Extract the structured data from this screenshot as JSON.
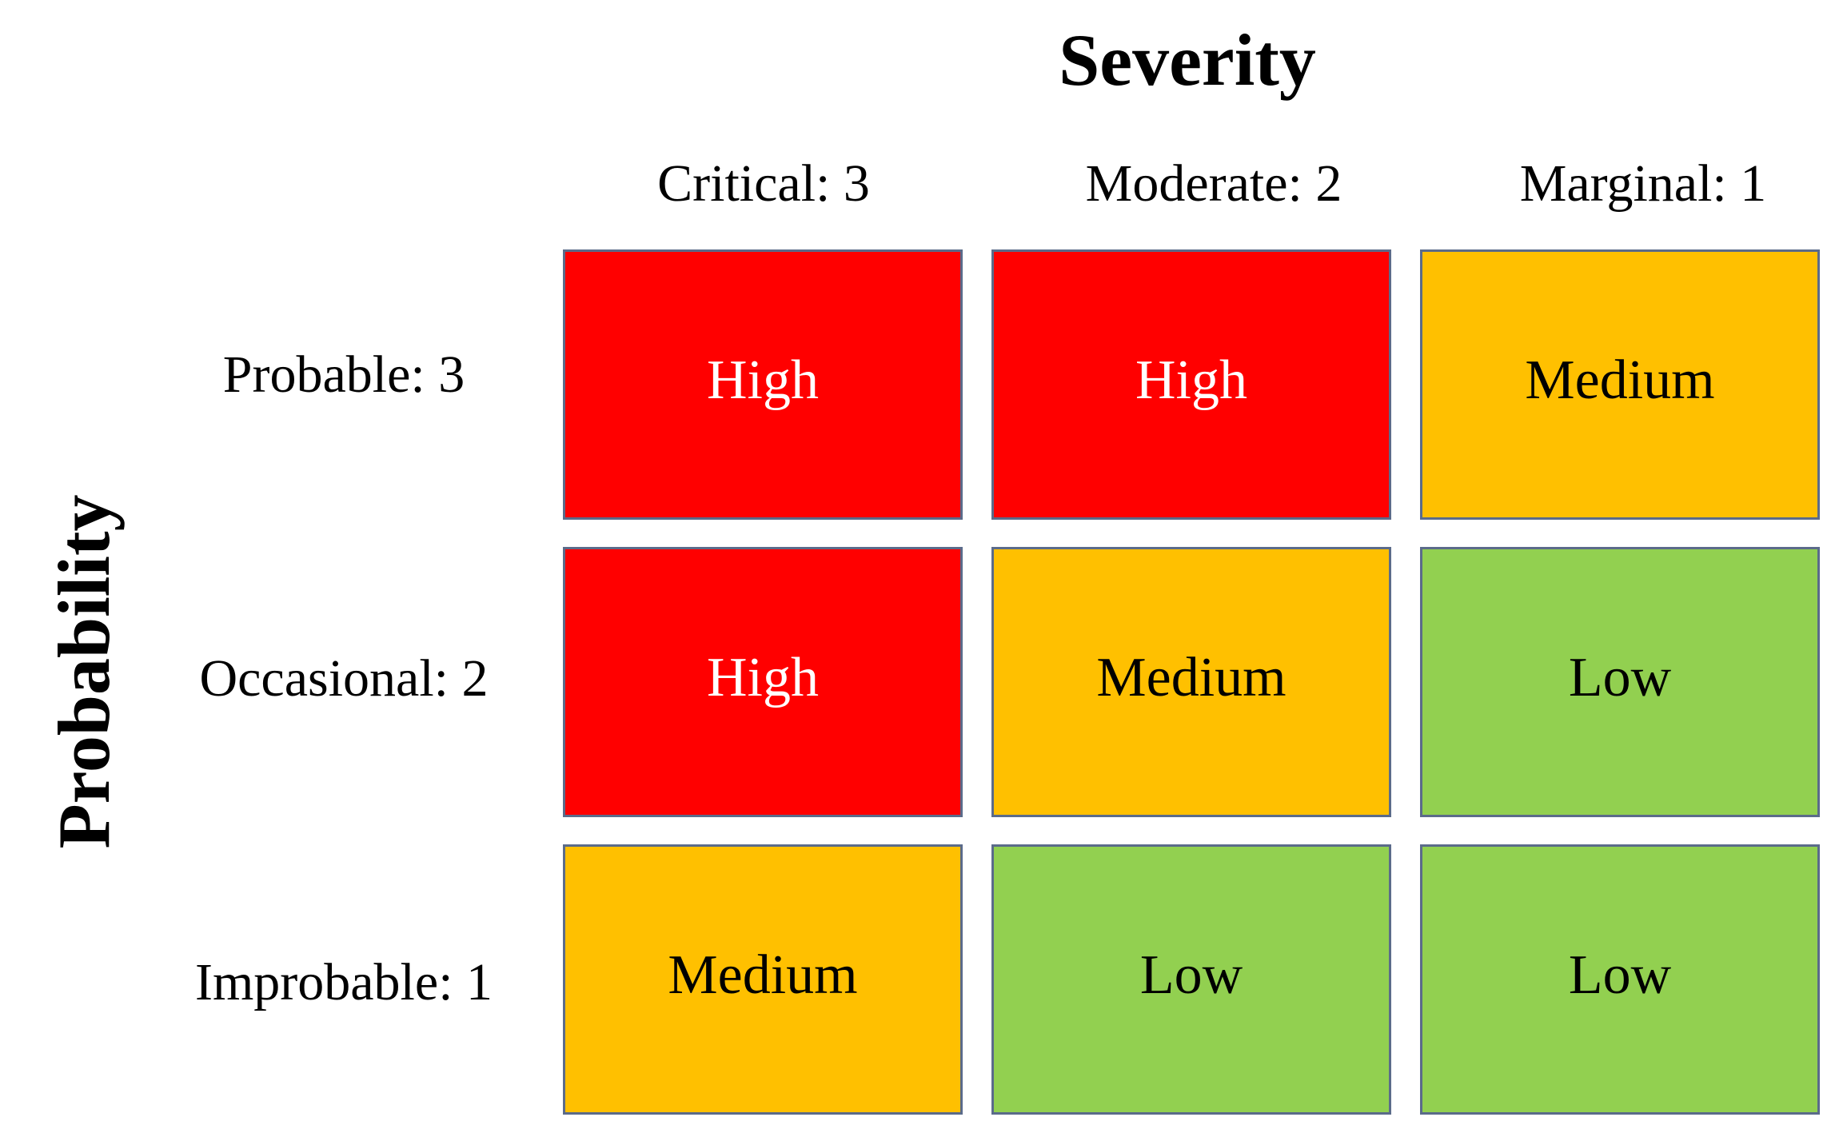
{
  "diagram": {
    "title_x": "Severity",
    "title_y": "Probability",
    "columns": [
      "Critical: 3",
      "Moderate: 2",
      "Marginal: 1"
    ],
    "rows": [
      "Probable: 3",
      "Occasional: 2",
      "Improbable: 1"
    ],
    "cells": [
      [
        "High",
        "High",
        "Medium"
      ],
      [
        "High",
        "Medium",
        "Low"
      ],
      [
        "Medium",
        "Low",
        "Low"
      ]
    ],
    "colors": {
      "high": "#ff0000",
      "medium": "#ffc000",
      "low": "#92d050",
      "border": "#5b6b8a",
      "high_text": "#ffffff",
      "medium_text": "#000000",
      "low_text": "#000000"
    }
  }
}
